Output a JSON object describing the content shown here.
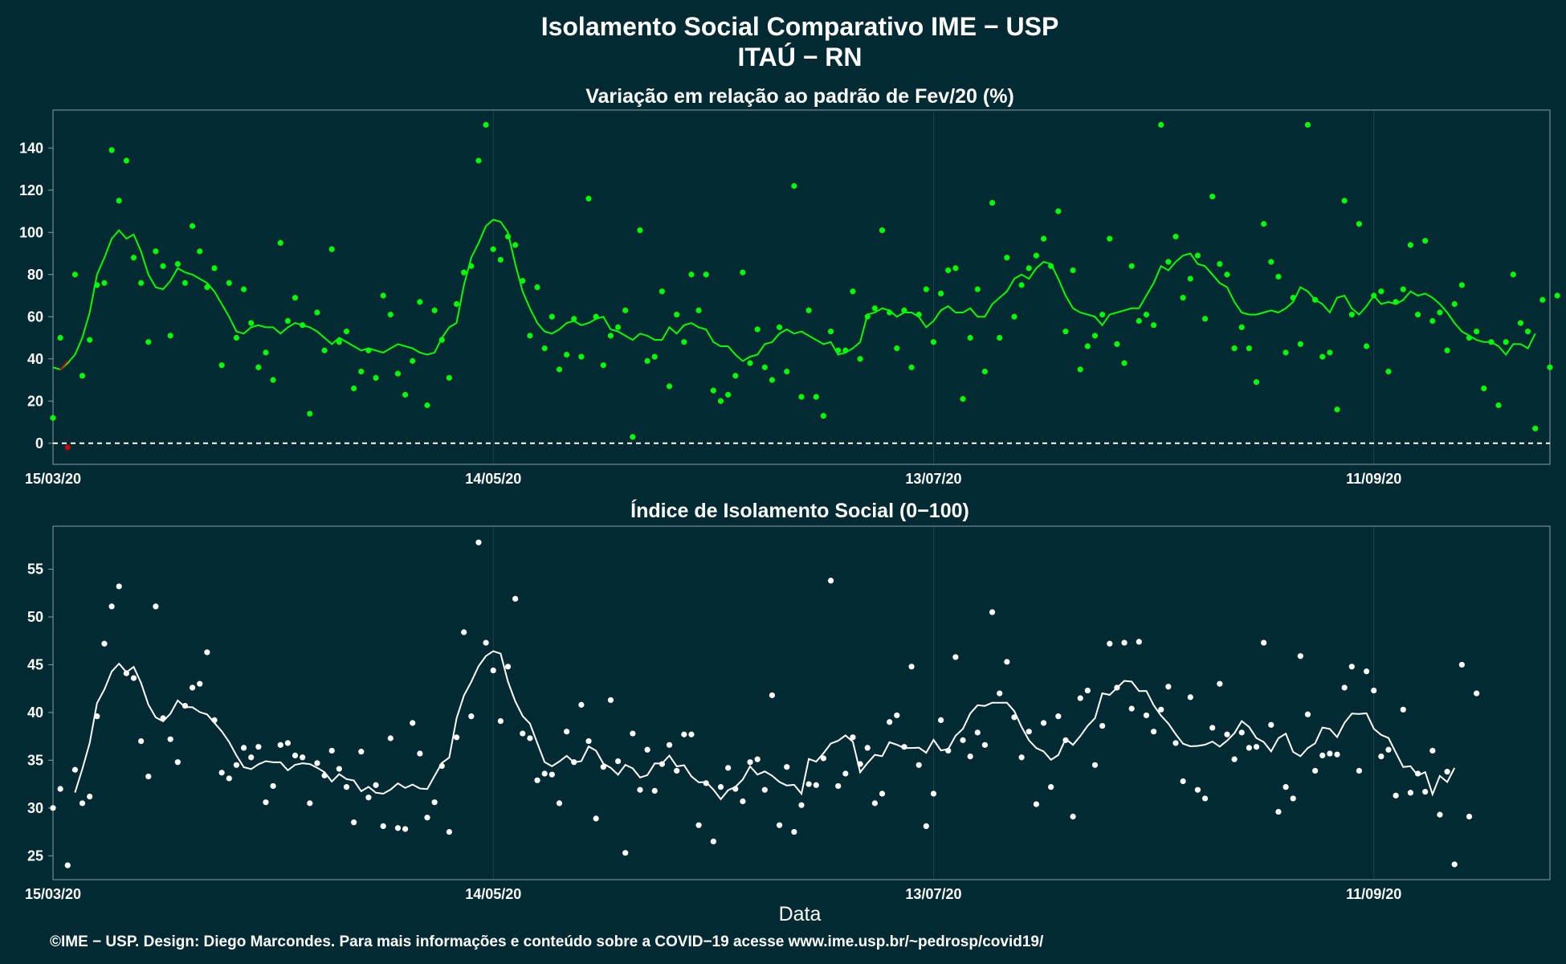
{
  "title_line1": "Isolamento Social Comparativo IME − USP",
  "title_line2": "ITAÚ − RN",
  "xlabel": "Data",
  "footer": "©IME − USP. Design: Diego Marcondes. Para mais informações e conteúdo sobre a COVID−19 acesse www.ime.usp.br/~pedrosp/covid19/",
  "colors": {
    "background": "#022a33",
    "top_series": "#00ff00",
    "top_negative": "#cc0000",
    "bottom_series": "#ffffff",
    "grid": "#1f4148",
    "frame": "#8a9ea3"
  },
  "x_ticks": [
    "15/03/20",
    "14/05/20",
    "13/07/20",
    "11/09/20"
  ],
  "chart_data": [
    {
      "type": "scatter",
      "title": "Variação em relação ao padrão de Fev/20 (%)",
      "x_start": "15/03/20",
      "x_unit": "day index from 15/03/20",
      "xlim": [
        0,
        204
      ],
      "ylim": [
        -10,
        158
      ],
      "yticks": [
        0,
        20,
        40,
        60,
        80,
        100,
        120,
        140
      ],
      "reference_line": 0,
      "grid": true,
      "points": [
        12,
        50,
        -2,
        80,
        32,
        49,
        75,
        76,
        139,
        115,
        134,
        88,
        76,
        48,
        91,
        84,
        51,
        85,
        76,
        103,
        91,
        74,
        83,
        37,
        76,
        50,
        73,
        57,
        36,
        43,
        30,
        95,
        58,
        69,
        56,
        14,
        62,
        44,
        92,
        48,
        53,
        26,
        34,
        44,
        31,
        70,
        61,
        33,
        23,
        39,
        67,
        18,
        63,
        49,
        31,
        66,
        81,
        84,
        134,
        151,
        92,
        87,
        98,
        94,
        77,
        51,
        74,
        45,
        60,
        35,
        42,
        59,
        41,
        116,
        60,
        37,
        51,
        55,
        63,
        3,
        101,
        39,
        41,
        72,
        27,
        61,
        48,
        80,
        63,
        80,
        25,
        20,
        23,
        32,
        81,
        38,
        54,
        36,
        30,
        55,
        34,
        122,
        22,
        63,
        22,
        13,
        53,
        44,
        44,
        72,
        40,
        60,
        64,
        101,
        62,
        45,
        63,
        36,
        61,
        73,
        48,
        71,
        82,
        83,
        21,
        50,
        73,
        34,
        114,
        50,
        88,
        60,
        75,
        83,
        89,
        97,
        84,
        110,
        53,
        82,
        35,
        46,
        51,
        61,
        97,
        47,
        38,
        84,
        58,
        61,
        56,
        151,
        86,
        98,
        69,
        78,
        89,
        59,
        117,
        85,
        80,
        45,
        55,
        45,
        29,
        104,
        86,
        79,
        43,
        69,
        47,
        151,
        68,
        41,
        43,
        16,
        115,
        61,
        104,
        46,
        70,
        72,
        34,
        67,
        73,
        94,
        61,
        96,
        58,
        62,
        44,
        66,
        75,
        50,
        53,
        26,
        48,
        18,
        48,
        80,
        57,
        53,
        7,
        68,
        36,
        70
      ],
      "negative_points": [
        [
          2,
          -2
        ]
      ],
      "moving_average": [
        36,
        35,
        38,
        42,
        50,
        62,
        80,
        88,
        97,
        101,
        97,
        99,
        91,
        80,
        74,
        73,
        77,
        83,
        81,
        80,
        78,
        76,
        72,
        66,
        60,
        53,
        52,
        55,
        56,
        55,
        55,
        52,
        55,
        57,
        56,
        55,
        53,
        50,
        47,
        50,
        48,
        46,
        44,
        45,
        44,
        43,
        45,
        47,
        46,
        45,
        43,
        42,
        43,
        50,
        55,
        57,
        75,
        88,
        95,
        103,
        106,
        105,
        100,
        85,
        72,
        64,
        57,
        53,
        52,
        54,
        57,
        58,
        56,
        57,
        59,
        60,
        54,
        53,
        51,
        49,
        52,
        51,
        49,
        49,
        55,
        52,
        56,
        57,
        55,
        54,
        48,
        46,
        46,
        42,
        39,
        41,
        42,
        47,
        48,
        52,
        54,
        52,
        53,
        51,
        49,
        47,
        48,
        42,
        43,
        45,
        48,
        61,
        62,
        64,
        63,
        60,
        62,
        62,
        60,
        55,
        58,
        63,
        65,
        62,
        62,
        64,
        60,
        60,
        66,
        69,
        72,
        78,
        80,
        78,
        83,
        86,
        85,
        78,
        70,
        64,
        62,
        61,
        60,
        56,
        61,
        62,
        63,
        64,
        64,
        70,
        76,
        84,
        82,
        86,
        89,
        90,
        85,
        84,
        80,
        76,
        74,
        67,
        62,
        61,
        61,
        62,
        63,
        62,
        64,
        67,
        74,
        72,
        68,
        66,
        62,
        69,
        70,
        64,
        61,
        65,
        70,
        66,
        67,
        66,
        68,
        72,
        70,
        71,
        69,
        66,
        62,
        57,
        53,
        51,
        49,
        48,
        48,
        46,
        42,
        47,
        47,
        45,
        52
      ]
    },
    {
      "type": "scatter",
      "title": "Índice de Isolamento Social (0−100)",
      "x_start": "15/03/20",
      "x_unit": "day index from 15/03/20",
      "xlim": [
        0,
        204
      ],
      "ylim": [
        22.5,
        59.5
      ],
      "yticks": [
        25,
        30,
        35,
        40,
        45,
        50,
        55
      ],
      "grid": true,
      "points": [
        30,
        32,
        24,
        34,
        30.5,
        31.2,
        39.6,
        47.2,
        51.1,
        53.2,
        44.1,
        43.6,
        37,
        33.3,
        51.1,
        39.4,
        37.2,
        34.8,
        40.7,
        42.6,
        43,
        46.3,
        39.2,
        33.7,
        33.1,
        34.5,
        36.3,
        35.3,
        36.4,
        30.6,
        32.3,
        36.6,
        36.8,
        35.5,
        35.3,
        30.5,
        34.7,
        33.4,
        36,
        34.1,
        32.2,
        28.5,
        35.9,
        31.1,
        32.4,
        28.1,
        37.3,
        27.9,
        27.8,
        38.9,
        35.7,
        29,
        30.6,
        34.4,
        27.5,
        37.4,
        48.4,
        39.6,
        57.8,
        47.3,
        44.4,
        39.1,
        44.8,
        51.9,
        37.8,
        37.3,
        32.9,
        33.6,
        33.5,
        30.5,
        38,
        34.8,
        40.8,
        37,
        28.9,
        34.3,
        41.3,
        34.9,
        25.3,
        37.8,
        31.9,
        36.1,
        31.8,
        34.6,
        36.6,
        33.9,
        37.7,
        37.7,
        28.2,
        32.6,
        26.5,
        32.2,
        34.2,
        32,
        30.7,
        34.8,
        35.1,
        31.9,
        41.8,
        28.2,
        34.3,
        27.5,
        30.3,
        32.5,
        32.4,
        35.2,
        53.8,
        32.3,
        33.6,
        37.4,
        34.6,
        36.3,
        30.5,
        31.5,
        39,
        39.7,
        36.4,
        44.8,
        34.5,
        28.1,
        31.5,
        39.2,
        36,
        45.8,
        37.1,
        35.4,
        37.9,
        36.6,
        50.5,
        42,
        45.3,
        39.5,
        35.3,
        38,
        30.4,
        38.9,
        32.2,
        39.6,
        37.1,
        29.1,
        41.5,
        42.3,
        34.5,
        38.6,
        47.2,
        42.6,
        47.3,
        40.4,
        47.4,
        39.7,
        38,
        40.3,
        42.7,
        36.8,
        32.8,
        41.6,
        31.9,
        31,
        38.4,
        43,
        37.7,
        35.1,
        37.9,
        36.3,
        36.4,
        47.3,
        38.7,
        29.6,
        32.2,
        31,
        45.9,
        39.8,
        33.9,
        35.5,
        35.7,
        35.6,
        42.6,
        44.8,
        33.9,
        44.3,
        42.3,
        35.4,
        36.1,
        31.3,
        40.3,
        31.6,
        33.6,
        31.7,
        36,
        29.3,
        33.8,
        24.1,
        45,
        29.1,
        42
      ]
    }
  ]
}
